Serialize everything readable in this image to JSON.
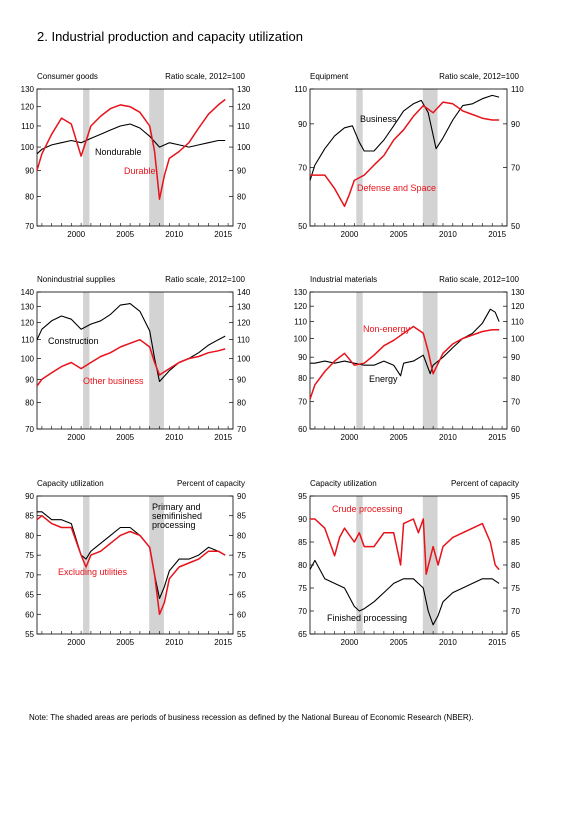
{
  "page": {
    "title": "2.  Industrial production and capacity utilization",
    "note": "Note: The shaded areas are periods of business recession as defined by the National Bureau of Economic Research (NBER)."
  },
  "recessions": [
    [
      2001.2,
      2001.85
    ],
    [
      2007.95,
      2009.45
    ]
  ],
  "colors": {
    "black_series": "#000000",
    "red_series": "#e8121a",
    "recession_shade": "#d3d3d3"
  },
  "chart_data": [
    {
      "type": "line",
      "title": "Consumer goods",
      "unit_label": "Ratio scale, 2012=100",
      "scale": "log",
      "xlim": [
        1996.5,
        2016.5
      ],
      "ylim": [
        70,
        130
      ],
      "yticks": [
        70,
        80,
        90,
        100,
        110,
        120,
        130
      ],
      "xticks": [
        2000,
        2005,
        2010,
        2015
      ],
      "series": [
        {
          "name": "Nondurable",
          "color": "#000000",
          "x": [
            1996.5,
            1997,
            1998,
            1999,
            2000,
            2001,
            2002,
            2003,
            2004,
            2005,
            2006,
            2007,
            2008,
            2009,
            2010,
            2011,
            2012,
            2013,
            2014,
            2015,
            2015.7
          ],
          "y": [
            97,
            99,
            101,
            102,
            103,
            102,
            104,
            106,
            108,
            110,
            111,
            109,
            105,
            100,
            102,
            101,
            100,
            101,
            102,
            103,
            103
          ]
        },
        {
          "name": "Durable",
          "color": "#e8121a",
          "x": [
            1996.5,
            1997,
            1998,
            1999,
            2000,
            2001,
            2002,
            2003,
            2004,
            2005,
            2006,
            2007,
            2008,
            2008.5,
            2009,
            2009.5,
            2010,
            2011,
            2012,
            2013,
            2014,
            2015,
            2015.7
          ],
          "y": [
            90,
            97,
            106,
            114,
            111,
            96,
            110,
            115,
            119,
            121,
            120,
            117,
            110,
            98,
            79,
            88,
            95,
            98,
            102,
            109,
            116,
            121,
            124
          ]
        }
      ],
      "annotations": [
        {
          "text": "Nondurable"
        },
        {
          "text": "Durable"
        }
      ]
    },
    {
      "type": "line",
      "title": "Equipment",
      "unit_label": "Ratio scale, 2012=100",
      "scale": "log",
      "xlim": [
        1996.5,
        2016.5
      ],
      "ylim": [
        50,
        110
      ],
      "yticks": [
        50,
        70,
        90,
        110
      ],
      "xticks": [
        2000,
        2005,
        2010,
        2015
      ],
      "series": [
        {
          "name": "Business",
          "color": "#000000",
          "x": [
            1996.5,
            1997,
            1998,
            1999,
            2000,
            2000.8,
            2001.5,
            2002,
            2003,
            2004,
            2005,
            2006,
            2007,
            2007.8,
            2008.5,
            2009.3,
            2010,
            2011,
            2012,
            2013,
            2014,
            2015,
            2015.7
          ],
          "y": [
            65,
            71,
            78,
            84,
            88,
            89,
            81,
            77,
            77,
            82,
            89,
            97,
            101,
            103,
            96,
            78,
            83,
            92,
            100,
            101,
            104,
            106,
            105
          ]
        },
        {
          "name": "Defense and Space",
          "color": "#e8121a",
          "x": [
            1996.5,
            1997,
            1998,
            1999,
            2000,
            2000.5,
            2001,
            2002,
            2003,
            2004,
            2005,
            2006,
            2007,
            2008,
            2009,
            2010,
            2011,
            2012,
            2013,
            2014,
            2015,
            2015.7
          ],
          "y": [
            67,
            67,
            67,
            62,
            56,
            60,
            65,
            67,
            71,
            75,
            82,
            87,
            94,
            100,
            96,
            102,
            101,
            97,
            95,
            93,
            92,
            92
          ]
        }
      ],
      "annotations": [
        {
          "text": "Business"
        },
        {
          "text": "Defense and Space"
        }
      ]
    },
    {
      "type": "line",
      "title": "Nonindustrial supplies",
      "unit_label": "Ratio scale, 2012=100",
      "scale": "log",
      "xlim": [
        1996.5,
        2016.5
      ],
      "ylim": [
        70,
        140
      ],
      "yticks": [
        70,
        80,
        90,
        100,
        110,
        120,
        130,
        140
      ],
      "xticks": [
        2000,
        2005,
        2010,
        2015
      ],
      "series": [
        {
          "name": "Construction",
          "color": "#000000",
          "x": [
            1996.5,
            1997,
            1998,
            1999,
            2000,
            2001,
            2002,
            2003,
            2004,
            2005,
            2006,
            2007,
            2008,
            2008.5,
            2009,
            2010,
            2011,
            2012,
            2013,
            2014,
            2015,
            2015.7
          ],
          "y": [
            110,
            116,
            121,
            124,
            122,
            116,
            119,
            121,
            125,
            131,
            132,
            127,
            115,
            100,
            89,
            94,
            98,
            100,
            103,
            107,
            110,
            112
          ]
        },
        {
          "name": "Other business",
          "color": "#e8121a",
          "x": [
            1996.5,
            1997,
            1998,
            1999,
            2000,
            2001,
            2002,
            2003,
            2004,
            2005,
            2006,
            2007,
            2008,
            2008.5,
            2009,
            2010,
            2011,
            2012,
            2013,
            2014,
            2015,
            2015.7
          ],
          "y": [
            87,
            90,
            93,
            96,
            98,
            95,
            98,
            101,
            103,
            106,
            108,
            110,
            106,
            98,
            92,
            95,
            98,
            100,
            101,
            103,
            104,
            105
          ]
        }
      ],
      "annotations": [
        {
          "text": "Construction"
        },
        {
          "text": "Other business"
        }
      ]
    },
    {
      "type": "line",
      "title": "Industrial materials",
      "unit_label": "Ratio scale, 2012=100",
      "scale": "log",
      "xlim": [
        1996.5,
        2016.5
      ],
      "ylim": [
        60,
        130
      ],
      "yticks": [
        60,
        70,
        80,
        90,
        100,
        110,
        120,
        130
      ],
      "xticks": [
        2000,
        2005,
        2010,
        2015
      ],
      "series": [
        {
          "name": "Energy",
          "color": "#000000",
          "x": [
            1996.5,
            1997,
            1998,
            1999,
            2000,
            2001,
            2002,
            2003,
            2004,
            2005,
            2005.7,
            2006,
            2007,
            2008,
            2008.7,
            2009,
            2010,
            2011,
            2012,
            2013,
            2014,
            2014.8,
            2015.3,
            2015.7
          ],
          "y": [
            87,
            87,
            88,
            87,
            88,
            87,
            86,
            86,
            88,
            86,
            81,
            87,
            88,
            91,
            82,
            86,
            90,
            95,
            100,
            103,
            109,
            118,
            116,
            110
          ]
        },
        {
          "name": "Non-energy",
          "color": "#e8121a",
          "x": [
            1996.5,
            1997,
            1998,
            1999,
            2000,
            2001,
            2002,
            2003,
            2004,
            2005,
            2006,
            2007,
            2008,
            2008.5,
            2009,
            2010,
            2011,
            2012,
            2013,
            2014,
            2015,
            2015.7
          ],
          "y": [
            71,
            77,
            83,
            88,
            92,
            86,
            87,
            91,
            96,
            99,
            103,
            107,
            103,
            93,
            82,
            92,
            97,
            100,
            102,
            104,
            105,
            105
          ]
        }
      ],
      "annotations": [
        {
          "text": "Non-energy"
        },
        {
          "text": "Energy"
        }
      ]
    },
    {
      "type": "line",
      "title": "Capacity utilization",
      "unit_label": "Percent of capacity",
      "scale": "linear",
      "xlim": [
        1996.5,
        2016.5
      ],
      "ylim": [
        55,
        90
      ],
      "yticks": [
        55,
        60,
        65,
        70,
        75,
        80,
        85,
        90
      ],
      "xticks": [
        2000,
        2005,
        2010,
        2015
      ],
      "series": [
        {
          "name": "Primary and semifinished processing",
          "color": "#000000",
          "x": [
            1996.5,
            1997,
            1998,
            1999,
            2000,
            2001,
            2001.5,
            2002,
            2003,
            2004,
            2005,
            2006,
            2007,
            2008,
            2008.5,
            2009,
            2009.5,
            2010,
            2011,
            2012,
            2013,
            2014,
            2015,
            2015.7
          ],
          "y": [
            86,
            86,
            84,
            84,
            83,
            75,
            74,
            76,
            78,
            80,
            82,
            82,
            80,
            77,
            70,
            64,
            67,
            71,
            74,
            74,
            75,
            77,
            76,
            75
          ]
        },
        {
          "name": "Excluding utilities",
          "color": "#e8121a",
          "x": [
            1996.5,
            1997,
            1998,
            1999,
            2000,
            2001,
            2001.5,
            2002,
            2003,
            2004,
            2005,
            2006,
            2007,
            2008,
            2008.5,
            2009,
            2009.5,
            2010,
            2011,
            2012,
            2013,
            2014,
            2015,
            2015.7
          ],
          "y": [
            84,
            85,
            83,
            82,
            82,
            75,
            72,
            75,
            76,
            78,
            80,
            81,
            80,
            77,
            70,
            60,
            63,
            69,
            72,
            73,
            74,
            76,
            76,
            75
          ]
        }
      ],
      "annotations": [
        {
          "text": "Primary and\nsemifinished\nprocessing"
        },
        {
          "text": "Excluding utilities"
        }
      ]
    },
    {
      "type": "line",
      "title": "Capacity utilization",
      "unit_label": "Percent of capacity",
      "scale": "linear",
      "xlim": [
        1996.5,
        2016.5
      ],
      "ylim": [
        65,
        95
      ],
      "yticks": [
        65,
        70,
        75,
        80,
        85,
        90,
        95
      ],
      "xticks": [
        2000,
        2005,
        2010,
        2015
      ],
      "series": [
        {
          "name": "Crude processing",
          "color": "#e8121a",
          "x": [
            1996.5,
            1997,
            1998,
            1999,
            1999.5,
            2000,
            2001,
            2001.5,
            2002,
            2003,
            2004,
            2005,
            2005.7,
            2006,
            2007,
            2007.5,
            2008,
            2008.3,
            2009,
            2009.5,
            2010,
            2011,
            2012,
            2013,
            2014,
            2014.8,
            2015.3,
            2015.7
          ],
          "y": [
            90,
            90,
            88,
            82,
            86,
            88,
            85,
            87,
            84,
            84,
            87,
            87,
            80,
            89,
            90,
            87,
            90,
            78,
            84,
            80,
            84,
            86,
            87,
            88,
            89,
            85,
            80,
            79
          ]
        },
        {
          "name": "Finished processing",
          "color": "#000000",
          "x": [
            1996.5,
            1997,
            1998,
            1999,
            2000,
            2001,
            2001.5,
            2002,
            2003,
            2004,
            2005,
            2006,
            2007,
            2008,
            2008.5,
            2009,
            2009.5,
            2010,
            2011,
            2012,
            2013,
            2014,
            2015,
            2015.7
          ],
          "y": [
            79,
            81,
            77,
            76,
            75,
            71,
            70,
            70.5,
            72,
            74,
            76,
            77,
            77,
            75,
            70,
            67,
            69,
            72,
            74,
            75,
            76,
            77,
            77,
            76
          ]
        }
      ],
      "annotations": [
        {
          "text": "Crude processing"
        },
        {
          "text": "Finished processing"
        }
      ]
    }
  ]
}
